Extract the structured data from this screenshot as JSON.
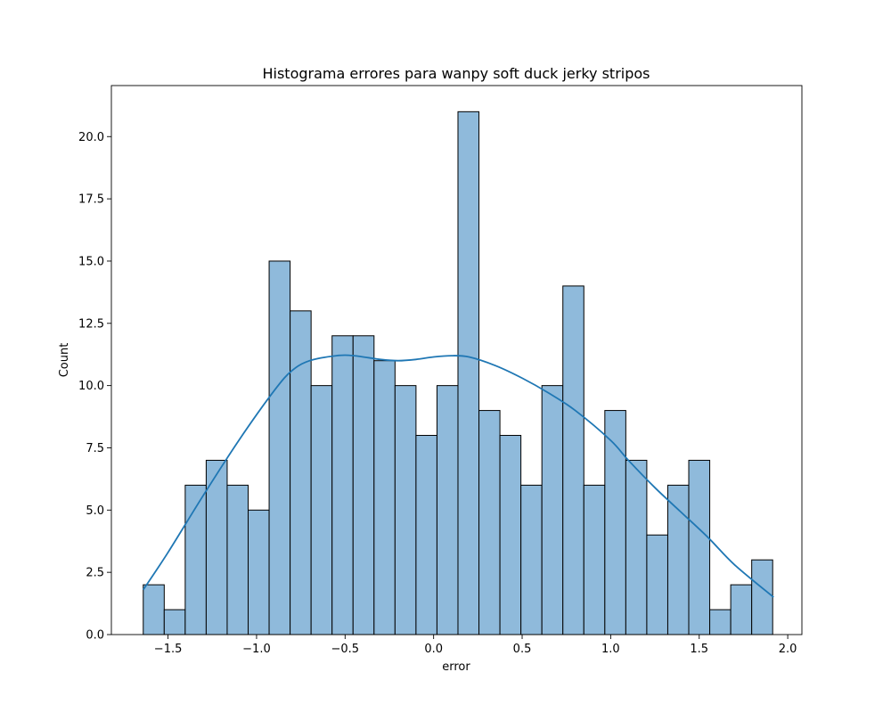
{
  "chart_data": {
    "type": "bar",
    "title": "Histograma errores para wanpy soft duck jerky stripos",
    "xlabel": "error",
    "ylabel": "Count",
    "xlim": [
      -1.82,
      2.08
    ],
    "ylim": [
      0,
      22.05
    ],
    "xticks": [
      -1.5,
      -1.0,
      -0.5,
      0.0,
      0.5,
      1.0,
      1.5,
      2.0
    ],
    "xtick_labels": [
      "−1.5",
      "−1.0",
      "−0.5",
      "0.0",
      "0.5",
      "1.0",
      "1.5",
      "2.0"
    ],
    "yticks": [
      0,
      2.5,
      5,
      7.5,
      10,
      12.5,
      15,
      17.5,
      20
    ],
    "ytick_labels": [
      "0.0",
      "2.5",
      "5.0",
      "7.5",
      "10.0",
      "12.5",
      "15.0",
      "17.5",
      "20.0"
    ],
    "grid": false,
    "bin_start": -1.64,
    "bin_width": 0.1185,
    "values": [
      2,
      1,
      6,
      7,
      6,
      5,
      15,
      13,
      10,
      12,
      12,
      11,
      10,
      8,
      10,
      21,
      9,
      8,
      6,
      10,
      14,
      6,
      9,
      7,
      4,
      6,
      7,
      1,
      2,
      3
    ],
    "kde": {
      "x": [
        -1.64,
        -1.5,
        -1.3,
        -1.1,
        -0.9,
        -0.8,
        -0.7,
        -0.55,
        -0.45,
        -0.3,
        -0.2,
        -0.1,
        0.0,
        0.1,
        0.2,
        0.35,
        0.5,
        0.65,
        0.8,
        1.0,
        1.1,
        1.25,
        1.4,
        1.55,
        1.7,
        1.92
      ],
      "y": [
        1.8,
        3.3,
        5.6,
        7.8,
        9.8,
        10.6,
        11.0,
        11.2,
        11.2,
        11.05,
        11.0,
        11.05,
        11.15,
        11.2,
        11.15,
        10.8,
        10.3,
        9.7,
        9.0,
        7.8,
        7.0,
        5.9,
        4.9,
        3.9,
        2.8,
        1.5
      ]
    },
    "bar_color": "#8fbadb",
    "bar_edge": "#000000",
    "line_color": "#1f77b4"
  }
}
